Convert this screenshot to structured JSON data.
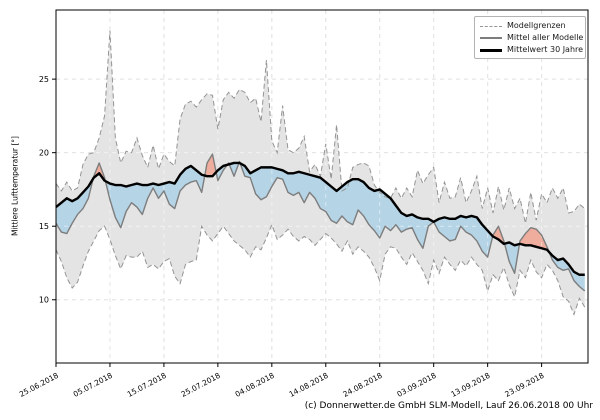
{
  "figure": {
    "caption": "(c) Donnerwetter.de GmbH SLM-Modell, Lauf 26.06.2018 00 Uhr"
  },
  "chart_data": {
    "type": "line",
    "title": "",
    "xlabel": "",
    "ylabel": "Mittlere Lufttemperatur [°]",
    "x_unit": "days since 25.06.2018",
    "xlim_days": [
      0,
      98.6
    ],
    "ylim": [
      5.7,
      29.7
    ],
    "yticks": [
      10,
      15,
      20,
      25
    ],
    "xtick_days": [
      0,
      10,
      20,
      30,
      40,
      50,
      60,
      70,
      80,
      90
    ],
    "xtick_labels": [
      "25.06.2018",
      "05.07.2018",
      "15.07.2018",
      "25.07.2018",
      "04.08.2018",
      "14.08.2018",
      "24.08.2018",
      "03.09.2018",
      "13.09.2018",
      "23.09.2018"
    ],
    "grid": true,
    "legend": {
      "position": "upper right",
      "entries": [
        {
          "label": "Modellgrenzen",
          "style": "dashed-gray"
        },
        {
          "label": "Mittel aller Modelle",
          "style": "solid-gray"
        },
        {
          "label": "Mittelwert 30 Jahre",
          "style": "solid-black"
        }
      ]
    },
    "colors": {
      "envelope_fill": "#e4e4e4",
      "envelope_edge": "#949494",
      "below_fill": "#b5d4e6",
      "above_fill": "#efad9e",
      "model_mean_line": "#7d7d7d",
      "clim_mean_line": "#000000",
      "grid_line": "#cbcbcb",
      "frame": "#000000"
    },
    "series": [
      {
        "name": "Modellgrenze oben (Maximum der Modelle)",
        "role": "upper",
        "values": [
          17.9,
          17.4,
          18.0,
          17.4,
          17.6,
          19.2,
          19.9,
          20.0,
          21.0,
          22.5,
          28.3,
          21.0,
          19.3,
          20.1,
          20.0,
          21.0,
          19.8,
          19.0,
          20.5,
          18.9,
          19.9,
          19.4,
          19.1,
          22.3,
          23.3,
          23.5,
          23.1,
          23.6,
          24.0,
          23.9,
          21.6,
          23.6,
          24.1,
          23.7,
          24.3,
          24.1,
          23.4,
          23.7,
          22.1,
          26.3,
          20.8,
          20.0,
          23.2,
          20.2,
          20.0,
          20.3,
          21.1,
          18.7,
          19.2,
          18.4,
          20.6,
          18.2,
          21.9,
          17.4,
          17.6,
          19.0,
          19.2,
          19.3,
          19.1,
          17.8,
          17.3,
          17.0,
          16.9,
          17.6,
          16.9,
          17.6,
          17.0,
          18.8,
          17.9,
          18.5,
          19.0,
          16.6,
          18.0,
          16.9,
          17.0,
          18.3,
          16.6,
          17.4,
          18.4,
          16.2,
          17.6,
          15.9,
          17.7,
          16.1,
          17.6,
          16.2,
          16.9,
          15.2,
          17.3,
          15.4,
          17.2,
          16.6,
          17.6,
          16.9,
          17.6,
          15.9,
          16.0,
          16.5,
          16.2
        ]
      },
      {
        "name": "Modellgrenze unten (Minimum der Modelle)",
        "role": "lower",
        "values": [
          13.4,
          12.6,
          11.5,
          10.8,
          11.2,
          12.3,
          13.3,
          14.0,
          14.7,
          15.0,
          14.1,
          13.0,
          12.1,
          13.0,
          12.9,
          12.9,
          13.3,
          12.2,
          12.4,
          12.1,
          12.6,
          12.8,
          11.6,
          11.1,
          12.4,
          12.6,
          12.7,
          15.0,
          14.4,
          14.0,
          14.5,
          15.0,
          14.5,
          14.0,
          13.7,
          13.4,
          12.9,
          13.6,
          13.4,
          14.2,
          15.1,
          14.1,
          14.4,
          14.8,
          14.3,
          14.0,
          14.3,
          14.1,
          13.7,
          14.1,
          14.5,
          14.2,
          13.8,
          13.3,
          14.0,
          13.1,
          13.6,
          13.3,
          12.9,
          12.2,
          11.3,
          13.1,
          13.6,
          13.5,
          12.9,
          12.4,
          13.2,
          12.6,
          12.0,
          11.1,
          12.7,
          11.8,
          12.9,
          12.4,
          12.0,
          12.7,
          12.3,
          12.9,
          12.4,
          12.0,
          10.6,
          11.7,
          11.3,
          12.2,
          11.0,
          10.2,
          12.0,
          11.5,
          12.7,
          11.9,
          11.5,
          12.4,
          12.0,
          11.3,
          10.2,
          9.9,
          9.0,
          10.1,
          9.5
        ]
      },
      {
        "name": "Mittel aller Modelle",
        "role": "model_mean",
        "values": [
          15.2,
          14.6,
          14.5,
          15.2,
          15.8,
          16.2,
          16.9,
          18.4,
          19.3,
          18.3,
          16.8,
          15.6,
          14.9,
          16.0,
          16.6,
          16.3,
          15.8,
          16.9,
          17.6,
          16.9,
          17.4,
          16.5,
          16.2,
          17.4,
          17.8,
          18.0,
          18.1,
          17.3,
          19.3,
          19.9,
          18.1,
          18.8,
          19.3,
          18.4,
          19.4,
          18.4,
          18.3,
          17.2,
          16.8,
          17.0,
          17.7,
          18.3,
          18.2,
          17.3,
          17.1,
          17.3,
          16.6,
          17.3,
          16.9,
          16.2,
          16.0,
          15.4,
          15.2,
          15.7,
          15.3,
          15.1,
          16.1,
          15.7,
          15.1,
          14.7,
          14.2,
          15.0,
          14.7,
          15.1,
          14.6,
          14.8,
          14.9,
          14.1,
          13.5,
          15.0,
          15.3,
          14.6,
          14.3,
          14.0,
          14.1,
          15.0,
          14.6,
          14.4,
          14.0,
          13.3,
          12.9,
          14.4,
          15.0,
          14.0,
          12.6,
          11.8,
          14.0,
          14.5,
          14.9,
          14.8,
          14.4,
          13.6,
          12.7,
          12.2,
          12.0,
          12.1,
          11.3,
          10.9,
          10.6
        ]
      },
      {
        "name": "Mittelwert 30 Jahre",
        "role": "clim_mean",
        "values": [
          16.3,
          16.6,
          16.9,
          16.7,
          16.9,
          17.3,
          17.7,
          18.3,
          18.6,
          18.1,
          17.9,
          17.8,
          17.8,
          17.7,
          17.8,
          17.9,
          17.8,
          17.8,
          17.9,
          17.8,
          17.9,
          18.0,
          17.9,
          18.5,
          18.9,
          19.1,
          18.8,
          18.5,
          18.4,
          18.4,
          18.8,
          19.1,
          19.2,
          19.3,
          19.3,
          19.1,
          18.6,
          18.8,
          19.0,
          19.0,
          19.0,
          18.9,
          18.8,
          18.6,
          18.6,
          18.7,
          18.6,
          18.5,
          18.4,
          18.3,
          18.0,
          17.7,
          17.4,
          17.7,
          18.0,
          18.2,
          18.2,
          18.0,
          17.6,
          17.4,
          17.5,
          17.2,
          16.9,
          16.4,
          15.9,
          15.7,
          15.8,
          15.6,
          15.5,
          15.5,
          15.3,
          15.5,
          15.6,
          15.5,
          15.5,
          15.7,
          15.6,
          15.7,
          15.6,
          15.1,
          14.7,
          14.3,
          14.1,
          13.8,
          13.9,
          13.7,
          13.8,
          13.7,
          13.7,
          13.6,
          13.5,
          13.4,
          13.0,
          12.7,
          12.8,
          12.4,
          11.9,
          11.7,
          11.7
        ]
      }
    ]
  }
}
